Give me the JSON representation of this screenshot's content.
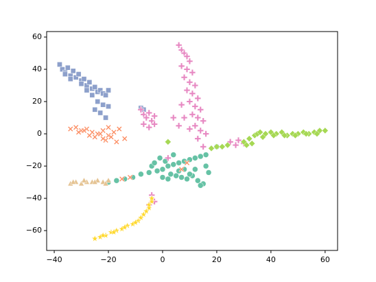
{
  "chart_data": {
    "type": "scatter",
    "xlim": [
      -42.8,
      64.6
    ],
    "ylim": [
      -72.3,
      63.4
    ],
    "xticks": [
      {
        "value": -40,
        "label": "−40"
      },
      {
        "value": -20,
        "label": "−20"
      },
      0,
      20,
      40,
      60
    ],
    "yticks": [
      {
        "value": -60,
        "label": "−60"
      },
      {
        "value": -40,
        "label": "−40"
      },
      {
        "value": -20,
        "label": "−20"
      },
      0,
      20,
      40,
      60
    ],
    "grid": false,
    "series": [
      {
        "color": "#66c2a5",
        "marker": "o",
        "x": [
          -20,
          -17,
          -14,
          -11,
          -8,
          -5,
          -2,
          0,
          2,
          4,
          6,
          8,
          10,
          12,
          14,
          16,
          3,
          5,
          7,
          9,
          11,
          13,
          15,
          1,
          4,
          8,
          12,
          16,
          -4,
          -1,
          2,
          6,
          10,
          14,
          0,
          17,
          20,
          -3
        ],
        "values": [
          -30,
          -29,
          -28,
          -27,
          -25,
          -24,
          -23,
          -22,
          -20,
          -19,
          -18,
          -17,
          -16,
          -15,
          -14,
          -13,
          -25,
          -26,
          -27,
          -28,
          -26,
          -29,
          -31,
          -17,
          -13,
          -22,
          -22,
          -20,
          -20,
          -15,
          -28,
          -23,
          -25,
          -32,
          -27,
          -24,
          -8,
          -18
        ]
      },
      {
        "color": "#fc8d62",
        "marker": "x",
        "x": [
          -34,
          -32,
          -30,
          -28,
          -26,
          -24,
          -22,
          -20,
          -18,
          -16,
          -31,
          -27,
          -25,
          -23,
          -21,
          -19,
          -17,
          -29,
          -22,
          -20,
          -14,
          7,
          9,
          -15,
          -12
        ],
        "values": [
          3,
          4,
          2,
          3,
          1,
          0,
          2,
          -1,
          1,
          3,
          1,
          -1,
          -2,
          0,
          -4,
          -2,
          -5,
          2,
          -3,
          4,
          -3,
          -22,
          -18,
          -28,
          -27
        ]
      },
      {
        "color": "#8da0cb",
        "marker": "s",
        "x": [
          -38,
          -37,
          -36,
          -35,
          -34,
          -33,
          -32,
          -31,
          -30,
          -29,
          -28,
          -27,
          -26,
          -25,
          -24,
          -23,
          -22,
          -21,
          -20,
          -36,
          -34,
          -30,
          -28,
          -26,
          -24,
          -22,
          -25,
          -23,
          -21,
          -8,
          -7,
          -20
        ],
        "values": [
          43,
          40,
          38,
          41,
          36,
          39,
          35,
          37,
          33,
          34,
          30,
          32,
          28,
          29,
          26,
          27,
          25,
          24,
          27,
          37,
          34,
          31,
          27,
          24,
          20,
          18,
          15,
          13,
          10,
          16,
          15,
          17
        ]
      },
      {
        "color": "#e78ac3",
        "marker": "P",
        "x": [
          6,
          7,
          8,
          9,
          10,
          7,
          9,
          11,
          8,
          10,
          12,
          9,
          11,
          13,
          10,
          12,
          14,
          11,
          13,
          15,
          12,
          14,
          16,
          7,
          8,
          10,
          13,
          15,
          -8,
          -7,
          -6,
          -5,
          -4,
          -3,
          -7,
          -5,
          -3,
          25,
          27,
          28,
          30,
          -4,
          -3,
          -5,
          4,
          6,
          2
        ],
        "values": [
          55,
          52,
          50,
          48,
          45,
          42,
          40,
          38,
          35,
          32,
          30,
          27,
          25,
          22,
          20,
          17,
          15,
          12,
          10,
          8,
          5,
          2,
          0,
          18,
          10,
          3,
          -3,
          -8,
          15,
          12,
          10,
          13,
          8,
          6,
          6,
          4,
          11,
          -5,
          -7,
          -4,
          -6,
          -38,
          -42,
          -44,
          10,
          5,
          -15
        ]
      },
      {
        "color": "#a6d854",
        "marker": "D",
        "x": [
          30,
          32,
          34,
          35,
          36,
          38,
          40,
          42,
          44,
          46,
          48,
          50,
          52,
          54,
          56,
          58,
          60,
          37,
          41,
          45,
          49,
          53,
          57,
          31,
          33,
          20,
          22,
          24,
          18,
          2
        ],
        "values": [
          -5,
          -3,
          -1,
          0,
          1,
          0,
          1,
          0,
          1,
          -1,
          0,
          0,
          1,
          0,
          1,
          2,
          2,
          -2,
          -1,
          -1,
          -1,
          0,
          0,
          -7,
          -6,
          -8,
          -8,
          -7,
          -9,
          -5
        ]
      },
      {
        "color": "#ffd92f",
        "marker": "*",
        "x": [
          -25,
          -23,
          -21,
          -19,
          -17,
          -15,
          -13,
          -11,
          -9,
          -8,
          -7,
          -6,
          -5,
          -5,
          -4,
          -4,
          -22,
          -18,
          -14,
          -10
        ],
        "values": [
          -65,
          -64,
          -63,
          -61,
          -60,
          -59,
          -57,
          -56,
          -54,
          -52,
          -50,
          -48,
          -46,
          -44,
          -42,
          -40,
          -63,
          -61,
          -58,
          -55
        ]
      },
      {
        "color": "#e5c494",
        "marker": "^",
        "x": [
          -34,
          -32,
          -30,
          -28,
          -26,
          -24,
          -22,
          -20,
          -33,
          -29,
          -25,
          -21
        ],
        "values": [
          -31,
          -30,
          -31,
          -30,
          -30,
          -29,
          -30,
          -29,
          -30,
          -29,
          -30,
          -31
        ]
      }
    ]
  }
}
